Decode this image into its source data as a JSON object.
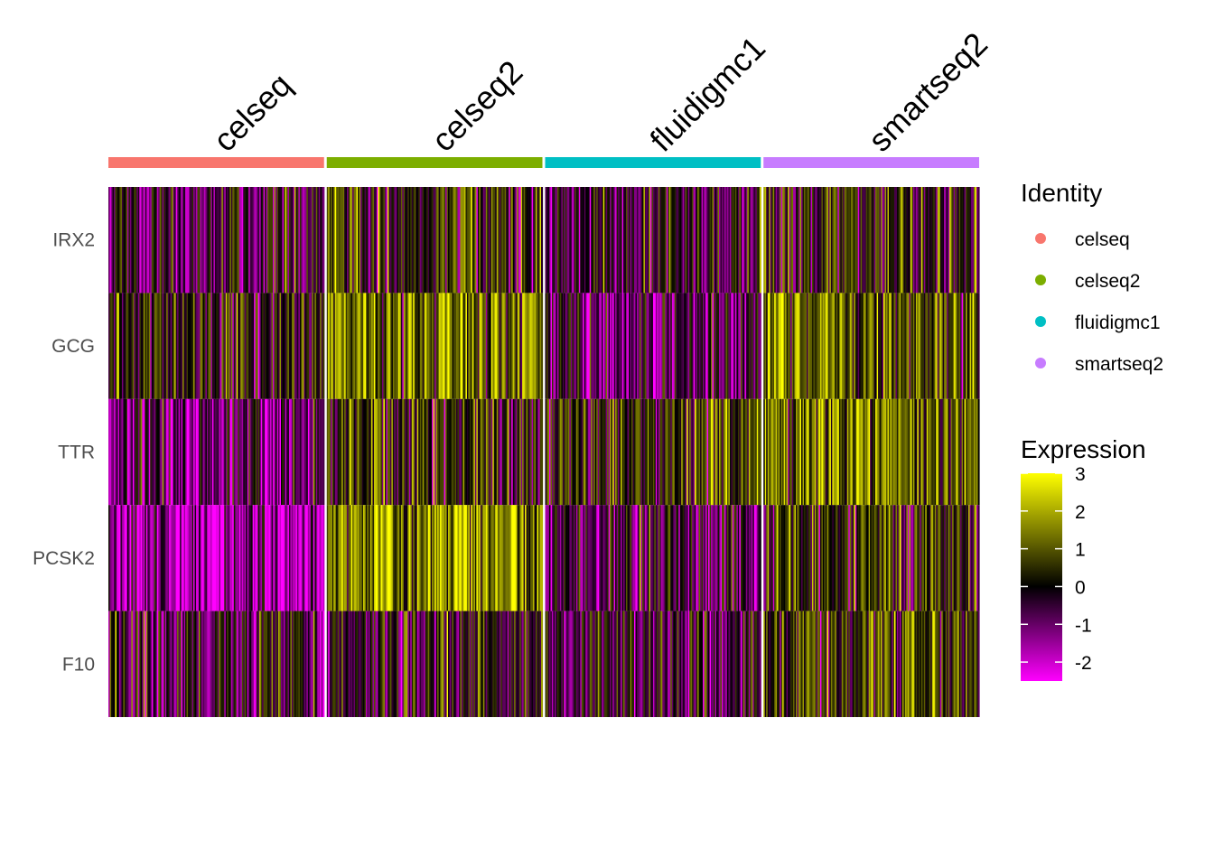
{
  "chart_data": {
    "type": "heatmap",
    "groups": [
      {
        "name": "celseq",
        "color": "#F8766D"
      },
      {
        "name": "celseq2",
        "color": "#7CAE00"
      },
      {
        "name": "fluidigmc1",
        "color": "#00BFC4"
      },
      {
        "name": "smartseq2",
        "color": "#C77CFF"
      }
    ],
    "genes": [
      "IRX2",
      "GCG",
      "TTR",
      "PCSK2",
      "F10"
    ],
    "mean_expression": {
      "IRX2": [
        -0.5,
        0.3,
        -0.4,
        0.2
      ],
      "GCG": [
        0.2,
        1.3,
        -0.6,
        1.0
      ],
      "TTR": [
        -1.0,
        0.2,
        0.6,
        1.2
      ],
      "PCSK2": [
        -1.6,
        1.5,
        -0.5,
        0.4
      ],
      "F10": [
        -0.4,
        -0.1,
        -0.4,
        0.6
      ]
    },
    "cells_per_group": 160,
    "color_scale": {
      "colors": [
        "#FF00FF",
        "#000000",
        "#FFFF00"
      ],
      "limits": [
        -2.5,
        3
      ],
      "ticks": [
        3,
        2,
        1,
        0,
        -1,
        -2
      ]
    },
    "legend_identity_title": "Identity",
    "legend_expression_title": "Expression"
  }
}
